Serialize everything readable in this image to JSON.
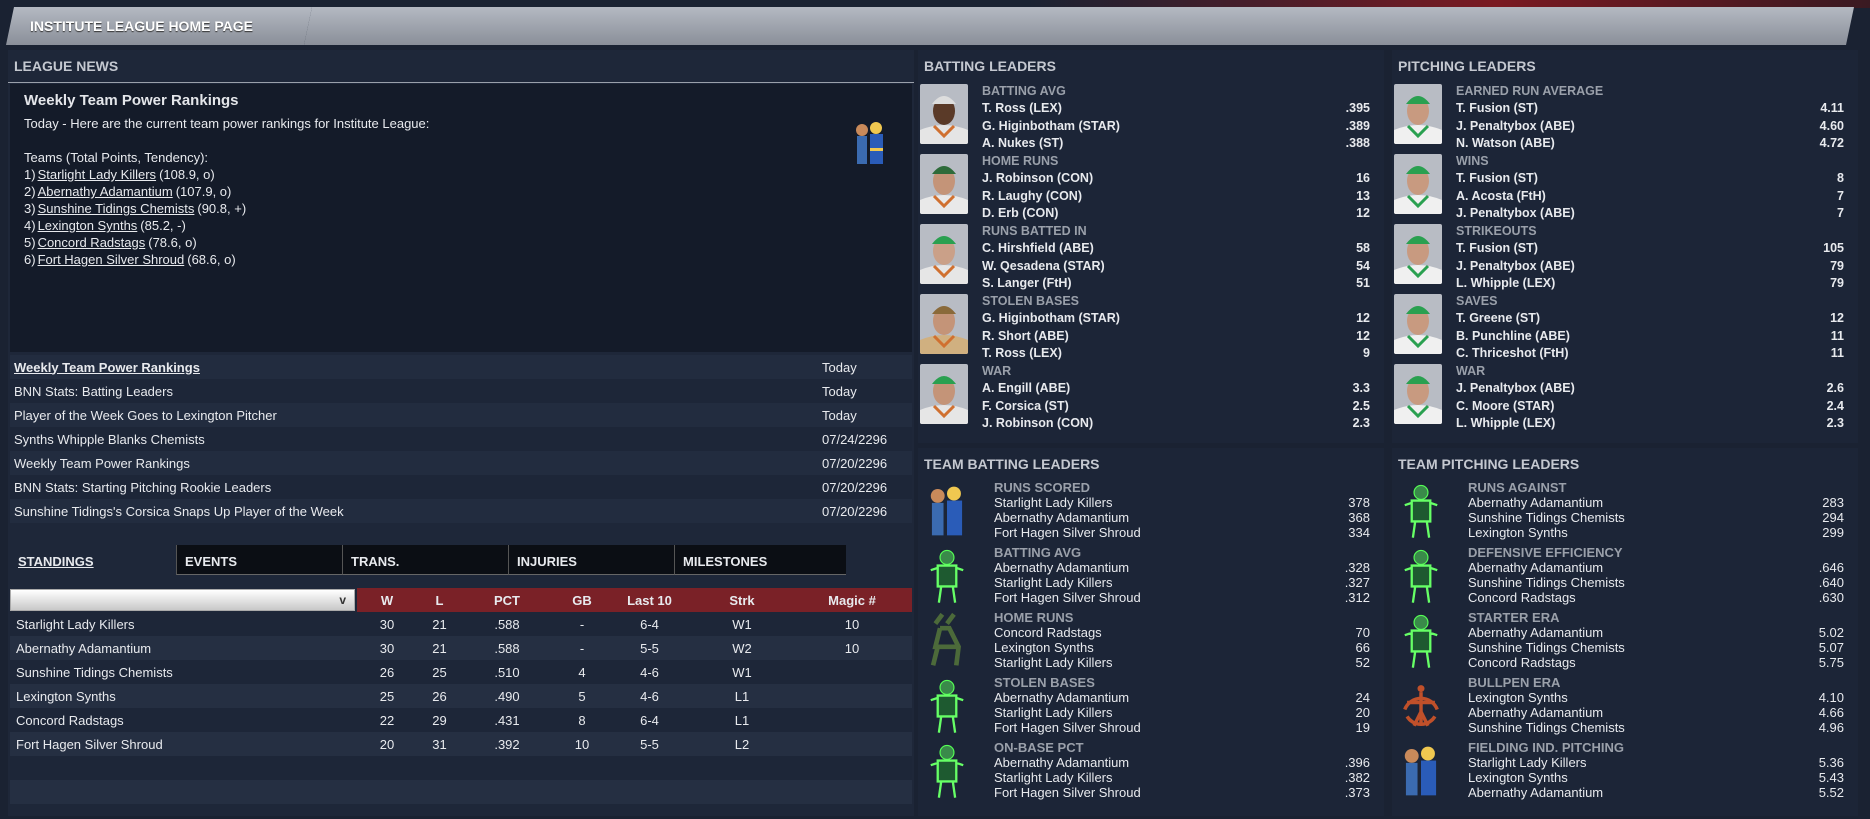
{
  "header": {
    "title": "INSTITUTE LEAGUE HOME PAGE"
  },
  "news": {
    "section_title": "LEAGUE NEWS",
    "headline": "Weekly Team Power Rankings",
    "intro": "Today - Here are the current team power rankings for Institute League:",
    "teams_label": "Teams (Total Points, Tendency):",
    "rankings": [
      {
        "rank": "1)",
        "team": "Starlight Lady Killers",
        "detail": "(108.9, o)"
      },
      {
        "rank": "2)",
        "team": "Abernathy Adamantium",
        "detail": "(107.9, o)"
      },
      {
        "rank": "3)",
        "team": "Sunshine Tidings Chemists",
        "detail": "(90.8, +)"
      },
      {
        "rank": "4)",
        "team": "Lexington Synths",
        "detail": "(85.2, -)"
      },
      {
        "rank": "5)",
        "team": "Concord Radstags",
        "detail": "(78.6, o)"
      },
      {
        "rank": "6)",
        "team": "Fort Hagen Silver Shroud",
        "detail": "(68.6, o)"
      }
    ],
    "items": [
      {
        "title": "Weekly Team Power Rankings",
        "date": "Today"
      },
      {
        "title": "BNN Stats: Batting Leaders",
        "date": "Today"
      },
      {
        "title": "Player of the Week Goes to Lexington Pitcher",
        "date": "Today"
      },
      {
        "title": "Synths Whipple Blanks Chemists",
        "date": "07/24/2296"
      },
      {
        "title": "Weekly Team Power Rankings",
        "date": "07/20/2296"
      },
      {
        "title": "BNN Stats: Starting Pitching Rookie Leaders",
        "date": "07/20/2296"
      },
      {
        "title": "Sunshine Tidings's Corsica Snaps Up Player of the Week",
        "date": "07/20/2296"
      }
    ]
  },
  "tabs": [
    "STANDINGS",
    "EVENTS",
    "TRANS.",
    "INJURIES",
    "MILESTONES"
  ],
  "standings": {
    "dropdown_value": "",
    "dropdown_icon": "chevron-down-icon",
    "columns": [
      "W",
      "L",
      "PCT",
      "GB",
      "Last 10",
      "Strk",
      "Magic #"
    ],
    "rows": [
      [
        "Starlight Lady Killers",
        "30",
        "21",
        ".588",
        "-",
        "6-4",
        "W1",
        "10"
      ],
      [
        "Abernathy Adamantium",
        "30",
        "21",
        ".588",
        "-",
        "5-5",
        "W2",
        "10"
      ],
      [
        "Sunshine Tidings Chemists",
        "26",
        "25",
        ".510",
        "4",
        "4-6",
        "W1",
        ""
      ],
      [
        "Lexington Synths",
        "25",
        "26",
        ".490",
        "5",
        "4-6",
        "L1",
        ""
      ],
      [
        "Concord Radstags",
        "22",
        "29",
        ".431",
        "8",
        "6-4",
        "L1",
        ""
      ],
      [
        "Fort Hagen Silver Shroud",
        "20",
        "31",
        ".392",
        "10",
        "5-5",
        "L2",
        ""
      ]
    ]
  },
  "batting_leaders": {
    "title": "BATTING LEADERS",
    "groups": [
      {
        "stat": "BATTING AVG",
        "leaders": [
          [
            "T. Ross (LEX)",
            ".395"
          ],
          [
            "G. Higinbotham (STAR)",
            ".389"
          ],
          [
            "A. Nukes (ST)",
            ".388"
          ]
        ]
      },
      {
        "stat": "HOME RUNS",
        "leaders": [
          [
            "J. Robinson (CON)",
            "16"
          ],
          [
            "R. Laughy (CON)",
            "13"
          ],
          [
            "D. Erb (CON)",
            "12"
          ]
        ]
      },
      {
        "stat": "RUNS BATTED IN",
        "leaders": [
          [
            "C. Hirshfield (ABE)",
            "58"
          ],
          [
            "W. Qesadena (STAR)",
            "54"
          ],
          [
            "S. Langer (FtH)",
            "51"
          ]
        ]
      },
      {
        "stat": "STOLEN BASES",
        "leaders": [
          [
            "G. Higinbotham (STAR)",
            "12"
          ],
          [
            "R. Short (ABE)",
            "12"
          ],
          [
            "T. Ross (LEX)",
            "9"
          ]
        ]
      },
      {
        "stat": "WAR",
        "leaders": [
          [
            "A. Engill (ABE)",
            "3.3"
          ],
          [
            "F. Corsica (ST)",
            "2.5"
          ],
          [
            "J. Robinson (CON)",
            "2.3"
          ]
        ]
      }
    ]
  },
  "pitching_leaders": {
    "title": "PITCHING LEADERS",
    "groups": [
      {
        "stat": "EARNED RUN AVERAGE",
        "leaders": [
          [
            "T. Fusion (ST)",
            "4.11"
          ],
          [
            "J. Penaltybox (ABE)",
            "4.60"
          ],
          [
            "N. Watson (ABE)",
            "4.72"
          ]
        ]
      },
      {
        "stat": "WINS",
        "leaders": [
          [
            "T. Fusion (ST)",
            "8"
          ],
          [
            "A. Acosta (FtH)",
            "7"
          ],
          [
            "J. Penaltybox (ABE)",
            "7"
          ]
        ]
      },
      {
        "stat": "STRIKEOUTS",
        "leaders": [
          [
            "T. Fusion (ST)",
            "105"
          ],
          [
            "J. Penaltybox (ABE)",
            "79"
          ],
          [
            "L. Whipple (LEX)",
            "79"
          ]
        ]
      },
      {
        "stat": "SAVES",
        "leaders": [
          [
            "T. Greene (ST)",
            "12"
          ],
          [
            "B. Punchline (ABE)",
            "11"
          ],
          [
            "C. Thriceshot (FtH)",
            "11"
          ]
        ]
      },
      {
        "stat": "WAR",
        "leaders": [
          [
            "J. Penaltybox (ABE)",
            "2.6"
          ],
          [
            "C. Moore (STAR)",
            "2.4"
          ],
          [
            "L. Whipple (LEX)",
            "2.3"
          ]
        ]
      }
    ]
  },
  "team_batting_leaders": {
    "title": "TEAM BATTING LEADERS",
    "groups": [
      {
        "stat": "RUNS SCORED",
        "icon": "vault-couple-icon",
        "leaders": [
          [
            "Starlight Lady Killers",
            "378"
          ],
          [
            "Abernathy Adamantium",
            "368"
          ],
          [
            "Fort Hagen Silver Shroud",
            "334"
          ]
        ]
      },
      {
        "stat": "BATTING AVG",
        "icon": "glowing-vault-boy-icon",
        "leaders": [
          [
            "Abernathy Adamantium",
            ".328"
          ],
          [
            "Starlight Lady Killers",
            ".327"
          ],
          [
            "Fort Hagen Silver Shroud",
            ".312"
          ]
        ]
      },
      {
        "stat": "HOME RUNS",
        "icon": "radstag-icon",
        "leaders": [
          [
            "Concord Radstags",
            "70"
          ],
          [
            "Lexington Synths",
            "66"
          ],
          [
            "Starlight Lady Killers",
            "52"
          ]
        ]
      },
      {
        "stat": "STOLEN BASES",
        "icon": "glowing-vault-boy-icon",
        "leaders": [
          [
            "Abernathy Adamantium",
            "24"
          ],
          [
            "Starlight Lady Killers",
            "20"
          ],
          [
            "Fort Hagen Silver Shroud",
            "19"
          ]
        ]
      },
      {
        "stat": "ON-BASE PCT",
        "icon": "glowing-vault-boy-icon",
        "leaders": [
          [
            "Abernathy Adamantium",
            ".396"
          ],
          [
            "Starlight Lady Killers",
            ".382"
          ],
          [
            "Fort Hagen Silver Shroud",
            ".373"
          ]
        ]
      }
    ]
  },
  "team_pitching_leaders": {
    "title": "TEAM PITCHING LEADERS",
    "groups": [
      {
        "stat": "RUNS AGAINST",
        "icon": "glowing-vault-boy-icon",
        "leaders": [
          [
            "Abernathy Adamantium",
            "283"
          ],
          [
            "Sunshine Tidings Chemists",
            "294"
          ],
          [
            "Lexington Synths",
            "299"
          ]
        ]
      },
      {
        "stat": "DEFENSIVE EFFICIENCY",
        "icon": "glowing-vault-boy-icon",
        "leaders": [
          [
            "Abernathy Adamantium",
            ".646"
          ],
          [
            "Sunshine Tidings Chemists",
            ".640"
          ],
          [
            "Concord Radstags",
            ".630"
          ]
        ]
      },
      {
        "stat": "STARTER ERA",
        "icon": "glowing-vault-boy-icon",
        "leaders": [
          [
            "Abernathy Adamantium",
            "5.02"
          ],
          [
            "Sunshine Tidings Chemists",
            "5.07"
          ],
          [
            "Concord Radstags",
            "5.75"
          ]
        ]
      },
      {
        "stat": "BULLPEN ERA",
        "icon": "institute-logo-icon",
        "leaders": [
          [
            "Lexington Synths",
            "4.10"
          ],
          [
            "Abernathy Adamantium",
            "4.66"
          ],
          [
            "Sunshine Tidings Chemists",
            "4.96"
          ]
        ]
      },
      {
        "stat": "FIELDING IND. PITCHING",
        "icon": "vault-couple-icon",
        "leaders": [
          [
            "Starlight Lady Killers",
            "5.36"
          ],
          [
            "Lexington Synths",
            "5.43"
          ],
          [
            "Abernathy Adamantium",
            "5.52"
          ]
        ]
      }
    ]
  },
  "colors": {
    "accent_red": "#7a2127",
    "panel": "#1c2537",
    "background": "#1a2232"
  }
}
